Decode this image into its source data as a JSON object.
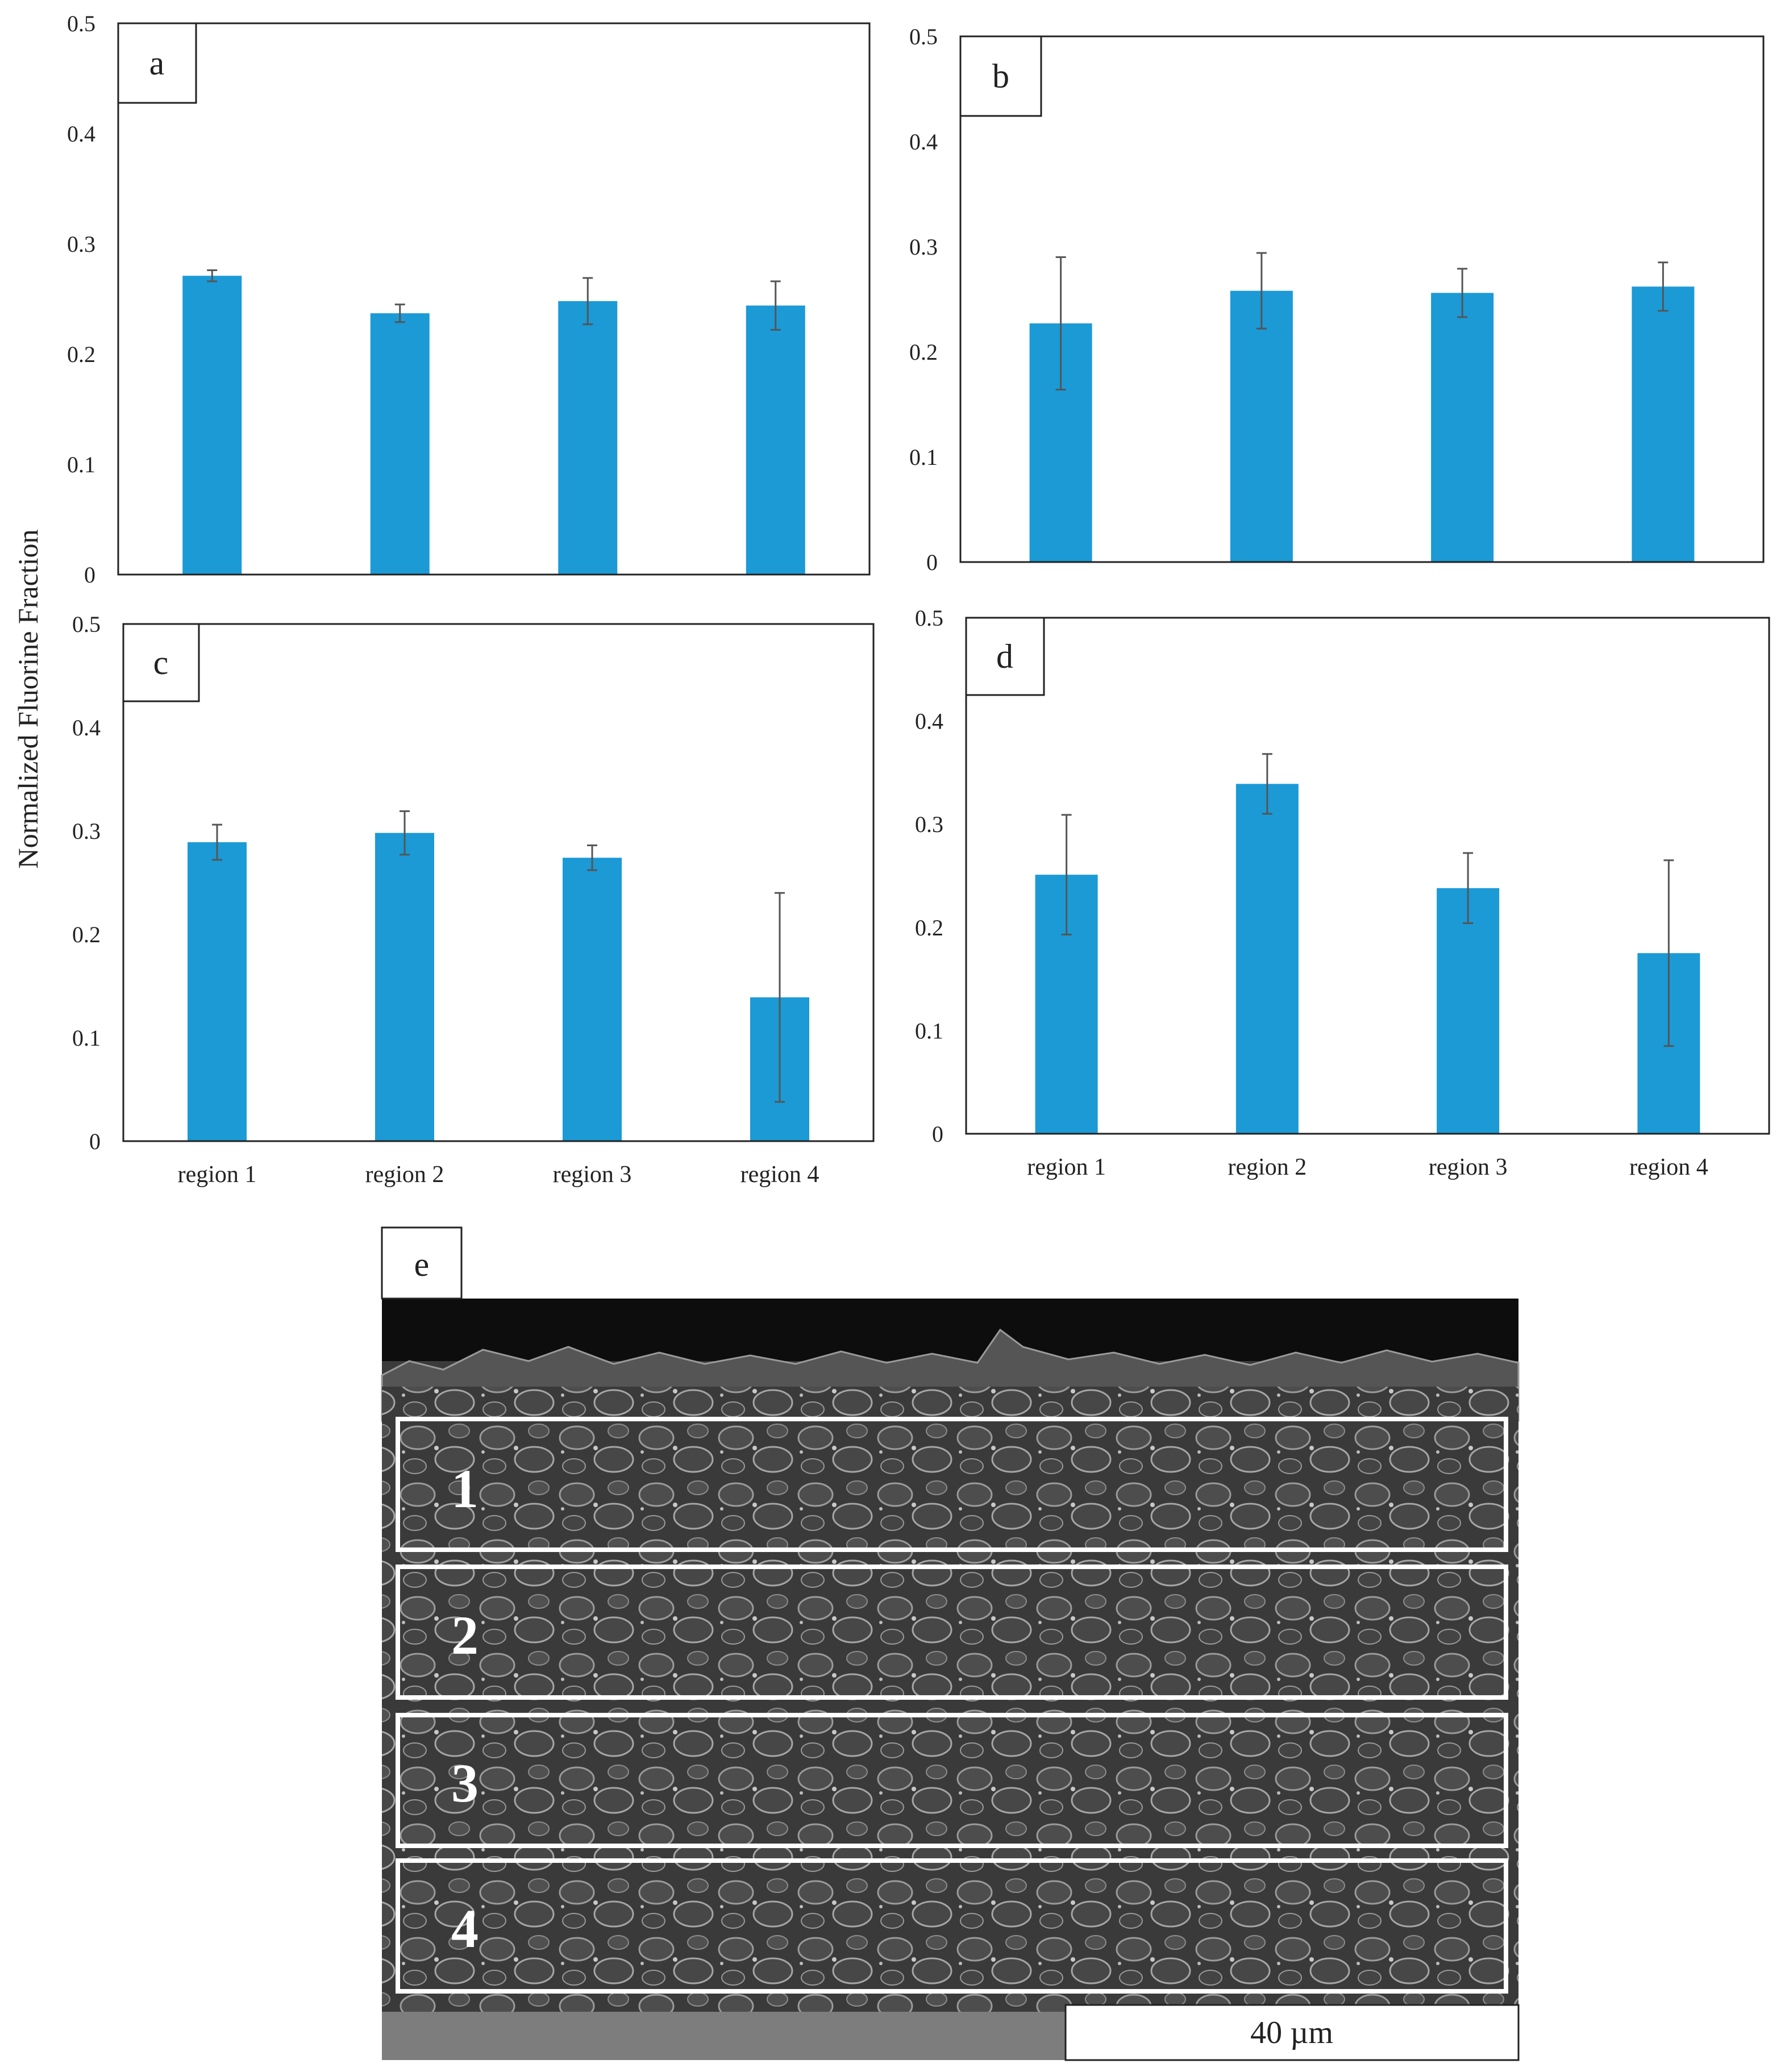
{
  "ylabel": "Normalized Fluorine Fraction",
  "tick_labels": [
    "0",
    "0.1",
    "0.2",
    "0.3",
    "0.4",
    "0.5"
  ],
  "colors": {
    "bar": "#1b9ad6",
    "error_bar": "#555555"
  },
  "chart_data": [
    {
      "type": "bar",
      "panel": "a",
      "categories": [
        "region 1",
        "region 2",
        "region 3",
        "region 4"
      ],
      "values": [
        0.271,
        0.237,
        0.248,
        0.244
      ],
      "errors": [
        0.005,
        0.008,
        0.021,
        0.022
      ],
      "ylim": [
        0,
        0.5
      ],
      "show_category_labels": false
    },
    {
      "type": "bar",
      "panel": "b",
      "categories": [
        "region 1",
        "region 2",
        "region 3",
        "region 4"
      ],
      "values": [
        0.227,
        0.258,
        0.256,
        0.262
      ],
      "errors": [
        0.063,
        0.036,
        0.023,
        0.023
      ],
      "ylim": [
        0,
        0.5
      ],
      "show_category_labels": false
    },
    {
      "type": "bar",
      "panel": "c",
      "categories": [
        "region 1",
        "region 2",
        "region 3",
        "region 4"
      ],
      "values": [
        0.289,
        0.298,
        0.274,
        0.139
      ],
      "errors": [
        0.017,
        0.021,
        0.012,
        0.101
      ],
      "ylim": [
        0,
        0.5
      ],
      "show_category_labels": true
    },
    {
      "type": "bar",
      "panel": "d",
      "categories": [
        "region 1",
        "region 2",
        "region 3",
        "region 4"
      ],
      "values": [
        0.251,
        0.339,
        0.238,
        0.175
      ],
      "errors": [
        0.058,
        0.029,
        0.034,
        0.09
      ],
      "ylim": [
        0,
        0.5
      ],
      "show_category_labels": true
    }
  ],
  "micrograph": {
    "panel": "e",
    "regions": [
      "1",
      "2",
      "3",
      "4"
    ],
    "scale_bar": "40 µm"
  }
}
